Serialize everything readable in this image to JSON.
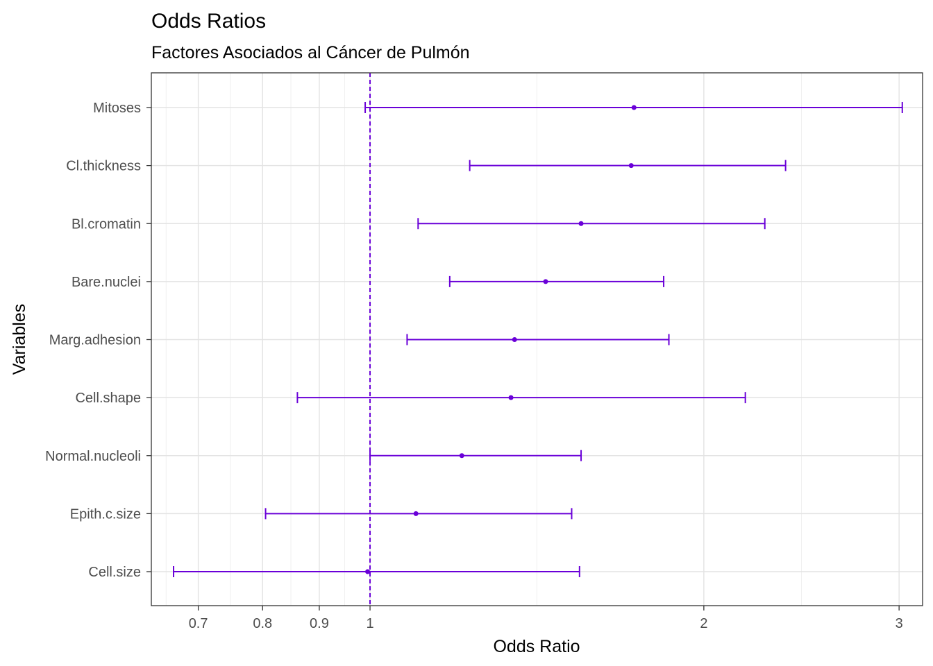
{
  "chart_data": {
    "type": "forest",
    "title": "Odds Ratios",
    "subtitle": "Factores Asociados al Cáncer de Pulmón",
    "xlabel": "Odds Ratio",
    "ylabel": "Variables",
    "x_scale": "log10",
    "xlim": [
      0.635,
      3.15
    ],
    "x_ticks": [
      0.7,
      0.8,
      0.9,
      1,
      2,
      3
    ],
    "x_tick_labels": [
      "0.7",
      "0.8",
      "0.9",
      "1",
      "2",
      "3"
    ],
    "reference_line": 1,
    "grid": true,
    "color": "#6a00d8",
    "rows": [
      {
        "label": "Mitoses",
        "or": 1.73,
        "lower": 0.99,
        "upper": 3.02
      },
      {
        "label": "Cl.thickness",
        "or": 1.72,
        "lower": 1.23,
        "upper": 2.37
      },
      {
        "label": "Bl.cromatin",
        "or": 1.55,
        "lower": 1.105,
        "upper": 2.27
      },
      {
        "label": "Bare.nuclei",
        "or": 1.44,
        "lower": 1.18,
        "upper": 1.84
      },
      {
        "label": "Marg.adhesion",
        "or": 1.35,
        "lower": 1.08,
        "upper": 1.86
      },
      {
        "label": "Cell.shape",
        "or": 1.34,
        "lower": 0.86,
        "upper": 2.18
      },
      {
        "label": "Normal.nucleoli",
        "or": 1.21,
        "lower": 1.0,
        "upper": 1.55
      },
      {
        "label": "Epith.c.size",
        "or": 1.1,
        "lower": 0.805,
        "upper": 1.52
      },
      {
        "label": "Cell.size",
        "or": 0.995,
        "lower": 0.665,
        "upper": 1.545
      }
    ]
  }
}
